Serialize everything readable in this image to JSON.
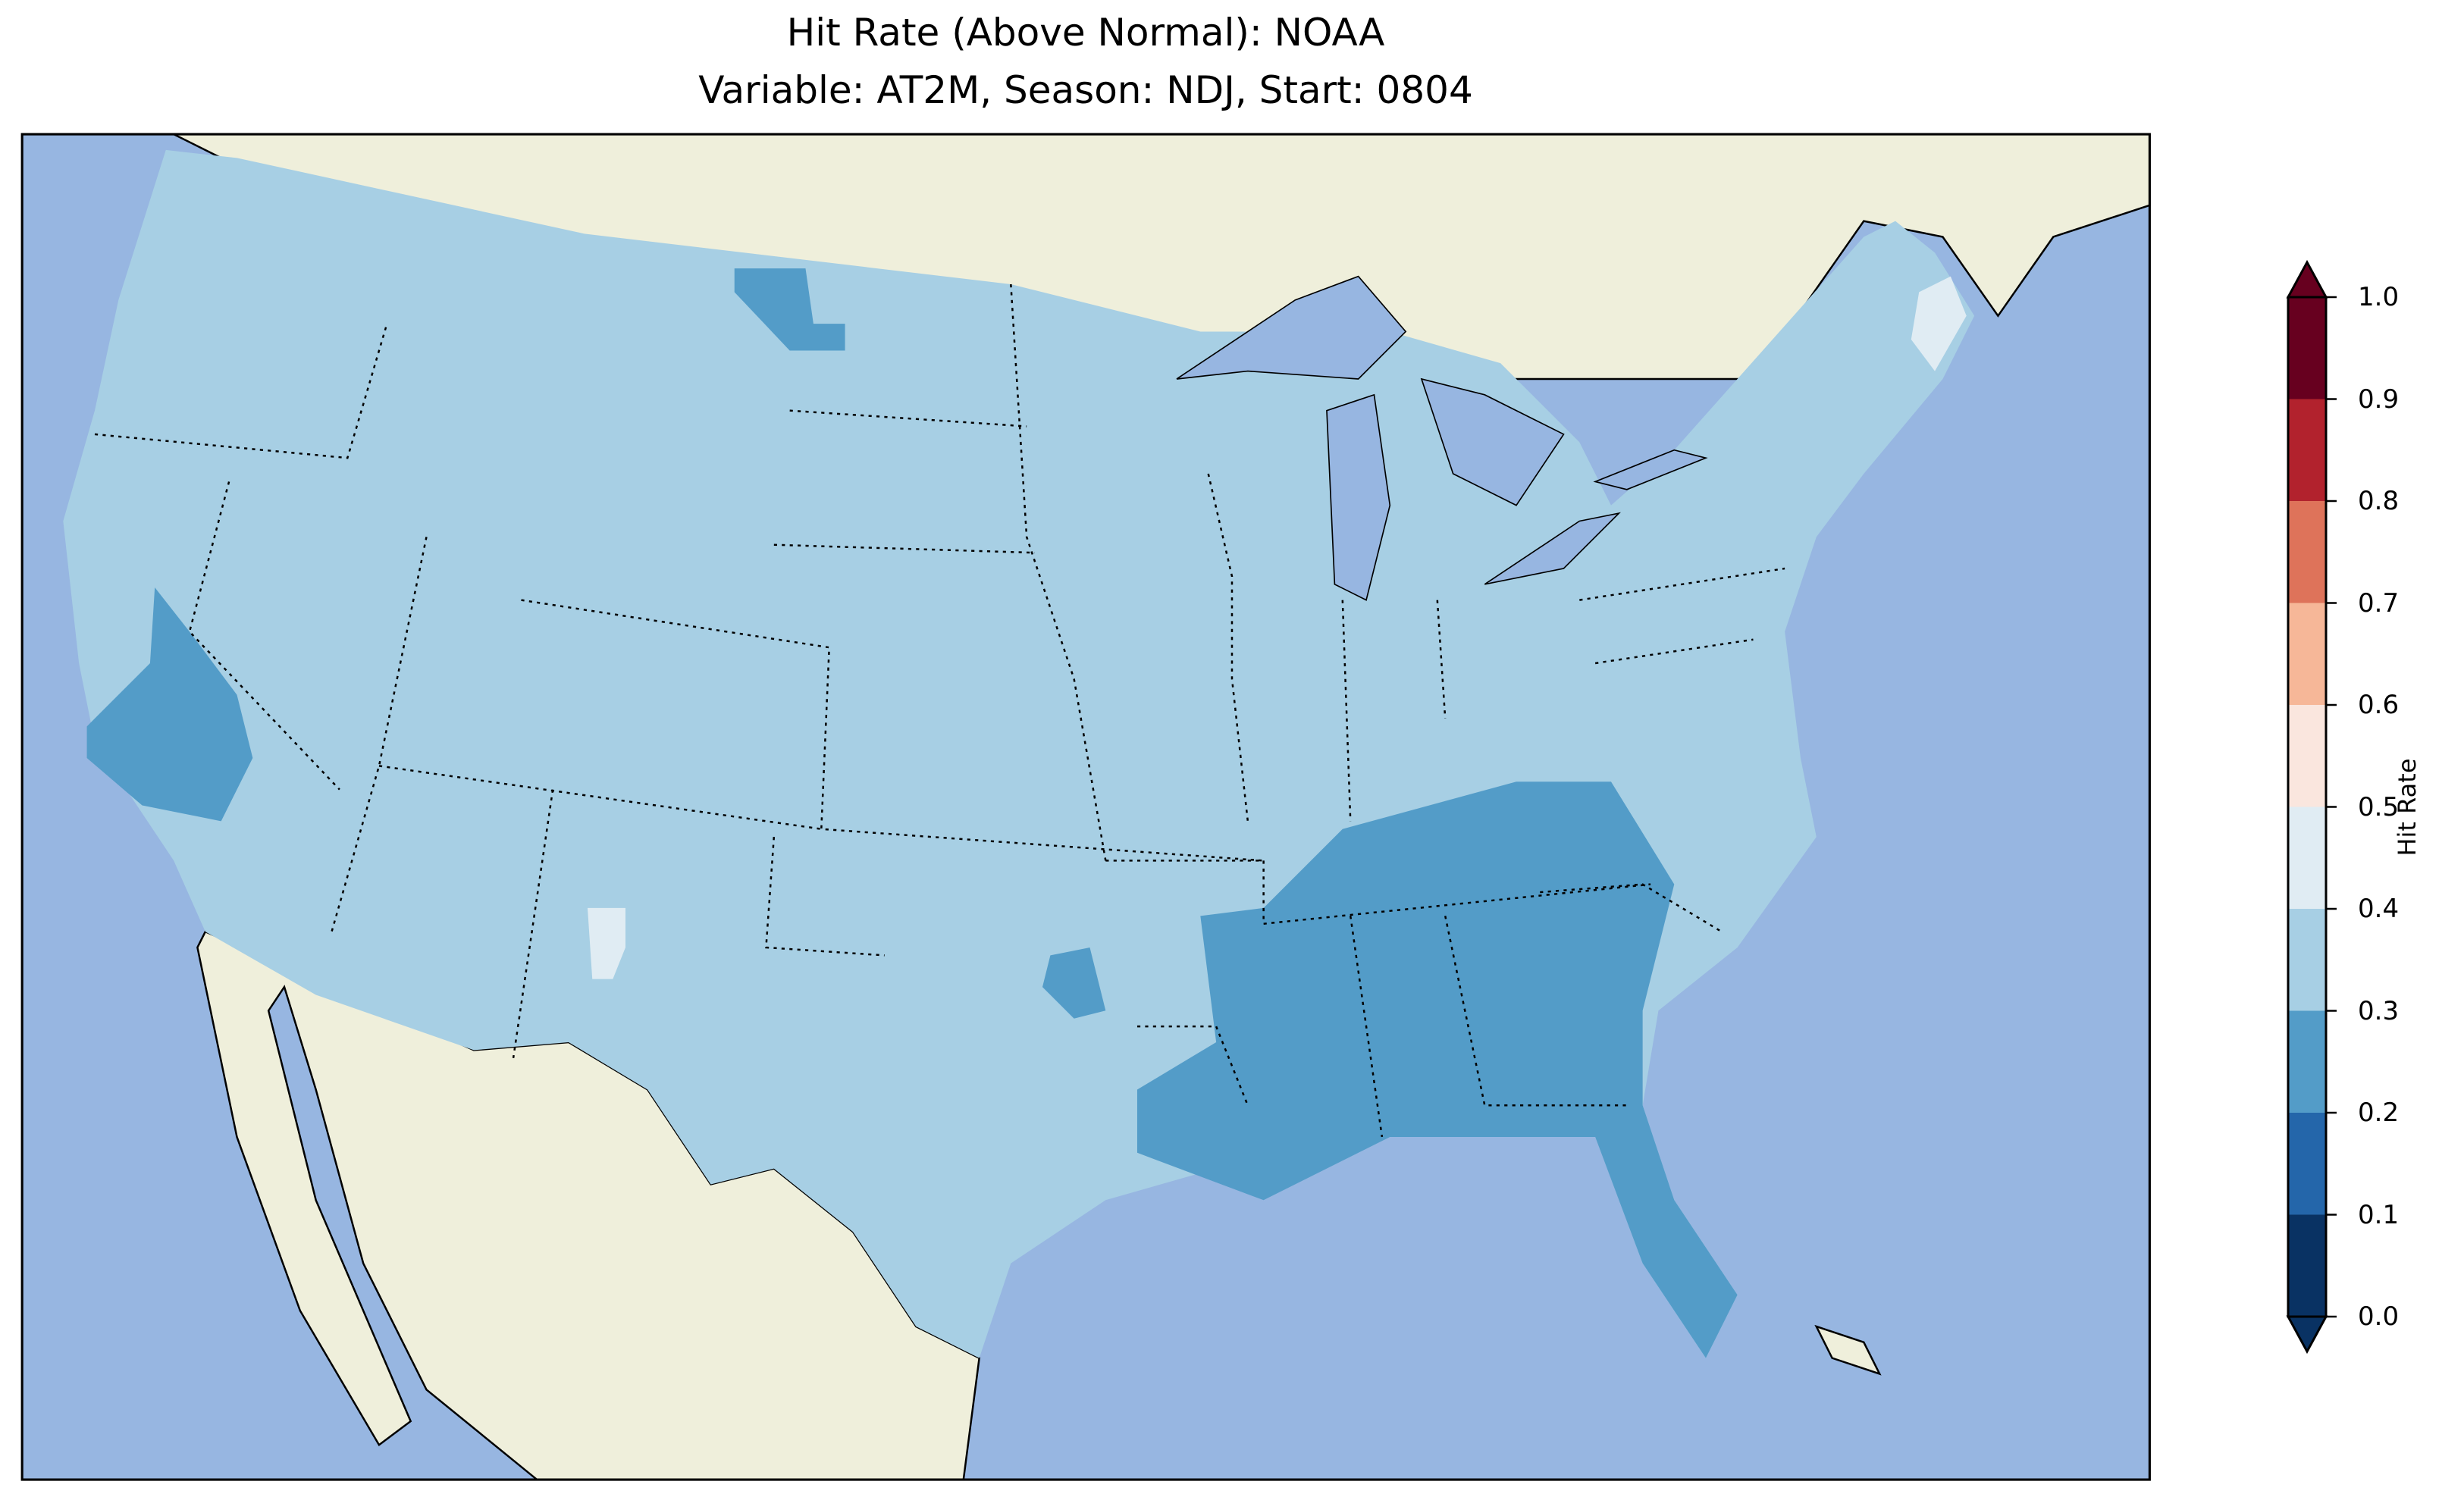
{
  "title": {
    "line1": "Hit Rate (Above Normal): NOAA",
    "line2": "Variable: AT2M, Season: NDJ, Start: 0804"
  },
  "chart_data": {
    "type": "heatmap",
    "title": "Hit Rate (Above Normal): NOAA / Variable: AT2M, Season: NDJ, Start: 0804",
    "colorbar": {
      "label": "Hit Rate",
      "range": [
        0.0,
        1.0
      ],
      "extend": "both",
      "ticks": [
        "0.0",
        "0.1",
        "0.2",
        "0.3",
        "0.4",
        "0.5",
        "0.6",
        "0.7",
        "0.8",
        "0.9",
        "1.0"
      ],
      "bins": [
        {
          "range": [
            0.0,
            0.1
          ],
          "color": "#093263"
        },
        {
          "range": [
            0.1,
            0.2
          ],
          "color": "#2466aa"
        },
        {
          "range": [
            0.2,
            0.3
          ],
          "color": "#539cc8"
        },
        {
          "range": [
            0.3,
            0.4
          ],
          "color": "#a7cfe4"
        },
        {
          "range": [
            0.4,
            0.5
          ],
          "color": "#e0ecf3"
        },
        {
          "range": [
            0.5,
            0.6
          ],
          "color": "#fae6de"
        },
        {
          "range": [
            0.6,
            0.7
          ],
          "color": "#f6b798"
        },
        {
          "range": [
            0.7,
            0.8
          ],
          "color": "#de735a"
        },
        {
          "range": [
            0.8,
            0.9
          ],
          "color": "#b2222d"
        },
        {
          "range": [
            0.9,
            1.0
          ],
          "color": "#67001f"
        }
      ]
    },
    "regions": [
      {
        "area": "Most of CONUS",
        "bin": [
          0.3,
          0.4
        ]
      },
      {
        "area": "Southeast (TN, MS, AL, GA, FL, LA)",
        "bin": [
          0.2,
          0.3
        ]
      },
      {
        "area": "Central California / Nevada border",
        "bin": [
          0.2,
          0.3
        ]
      },
      {
        "area": "Northern Montana patches",
        "bin": [
          0.2,
          0.3
        ]
      },
      {
        "area": "Maine, New Mexico patches",
        "bin": [
          0.4,
          0.5
        ]
      }
    ],
    "colors": {
      "ocean": "#97b6e1",
      "land": "#efefdb"
    }
  }
}
